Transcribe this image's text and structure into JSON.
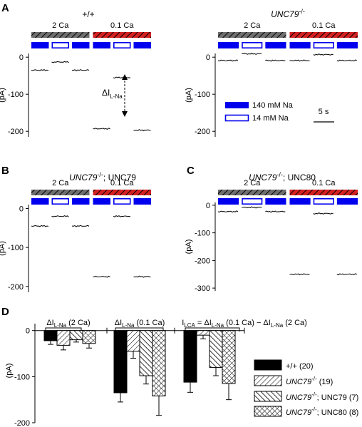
{
  "colors": {
    "high_na": "#0000ee",
    "low_na_fill": "#ffffff",
    "ca_2": "#6e6e6e",
    "ca_01": "#d42020",
    "bar_black": "#000000"
  },
  "labels": {
    "ca_2": "2 Ca",
    "ca_01": "0.1 Ca",
    "legend_140": "140 mM Na",
    "legend_14": "14 mM Na",
    "scale_5s": "5 s",
    "delta_il": "ΔI",
    "delta_il_sub": "L-Na",
    "pA": "(pA)"
  },
  "chart_data": [
    {
      "panel": "A",
      "type": "line",
      "title": "+/+",
      "ylabel": "(pA)",
      "yticks": [
        0,
        -100,
        -200
      ],
      "ylim": [
        -215,
        10
      ],
      "x_segments": [
        "140 Na / 2 Ca",
        "14 Na / 2 Ca",
        "140 Na / 2 Ca",
        "140 Na / 0.1 Ca",
        "14 Na / 0.1 Ca",
        "140 Na / 0.1 Ca"
      ],
      "values": [
        -35,
        -13,
        -35,
        -193,
        -55,
        -197
      ]
    },
    {
      "panel": "",
      "type": "line",
      "title_italic": "UNC79",
      "title_sup": "-/-",
      "ylabel": "(pA)",
      "yticks": [
        0,
        -100,
        -200
      ],
      "ylim": [
        -215,
        10
      ],
      "x_segments": [
        "140 Na / 2 Ca",
        "14 Na / 2 Ca",
        "140 Na / 2 Ca",
        "140 Na / 0.1 Ca",
        "14 Na / 0.1 Ca",
        "140 Na / 0.1 Ca"
      ],
      "values": [
        -9,
        9,
        -9,
        -9,
        7,
        -9
      ]
    },
    {
      "panel": "B",
      "type": "line",
      "title_italic": "UNC79",
      "title_sup": "-/-",
      "title_rest": "; UNC79",
      "ylabel": "(pA)",
      "yticks": [
        0,
        -100,
        -200
      ],
      "ylim": [
        -215,
        10
      ],
      "x_segments": [
        "140 Na / 2 Ca",
        "14 Na / 2 Ca",
        "140 Na / 2 Ca",
        "140 Na / 0.1 Ca",
        "14 Na / 0.1 Ca",
        "140 Na / 0.1 Ca"
      ],
      "values": [
        -45,
        -20,
        -45,
        -175,
        -20,
        -175
      ]
    },
    {
      "panel": "C",
      "type": "line",
      "title_italic": "UNC79",
      "title_sup": "-/-",
      "title_rest": "; UNC80",
      "ylabel": "(pA)",
      "yticks": [
        0,
        -100,
        -200,
        -300
      ],
      "ylim": [
        -310,
        10
      ],
      "x_segments": [
        "140 Na / 2 Ca",
        "14 Na / 2 Ca",
        "140 Na / 2 Ca",
        "140 Na / 0.1 Ca",
        "14 Na / 0.1 Ca",
        "140 Na / 0.1 Ca"
      ],
      "values": [
        -23,
        -8,
        -23,
        -250,
        -30,
        -250
      ]
    },
    {
      "panel": "D",
      "type": "bar",
      "ylabel": "(pA)",
      "yticks": [
        0,
        -100,
        -200
      ],
      "ylim": [
        -200,
        15
      ],
      "categories": [
        "ΔI L-Na (2 Ca)",
        "ΔI L-Na (0.1 Ca)",
        "I LCA = ΔI L-Na (0.1 Ca) − ΔI L-Na (2 Ca)"
      ],
      "series": [
        {
          "name": "+/+ (20)",
          "values": [
            -22,
            -135,
            -112
          ],
          "errors": [
            8,
            20,
            22
          ]
        },
        {
          "name": "UNC79-/- (19)",
          "values": [
            -32,
            -45,
            -10
          ],
          "errors": [
            10,
            15,
            8
          ]
        },
        {
          "name": "UNC79-/-; UNC79 (7)",
          "values": [
            -20,
            -98,
            -80
          ],
          "errors": [
            5,
            18,
            18
          ]
        },
        {
          "name": "UNC79-/-; UNC80 (8)",
          "values": [
            -28,
            -142,
            -115
          ],
          "errors": [
            10,
            42,
            35
          ]
        }
      ]
    }
  ]
}
